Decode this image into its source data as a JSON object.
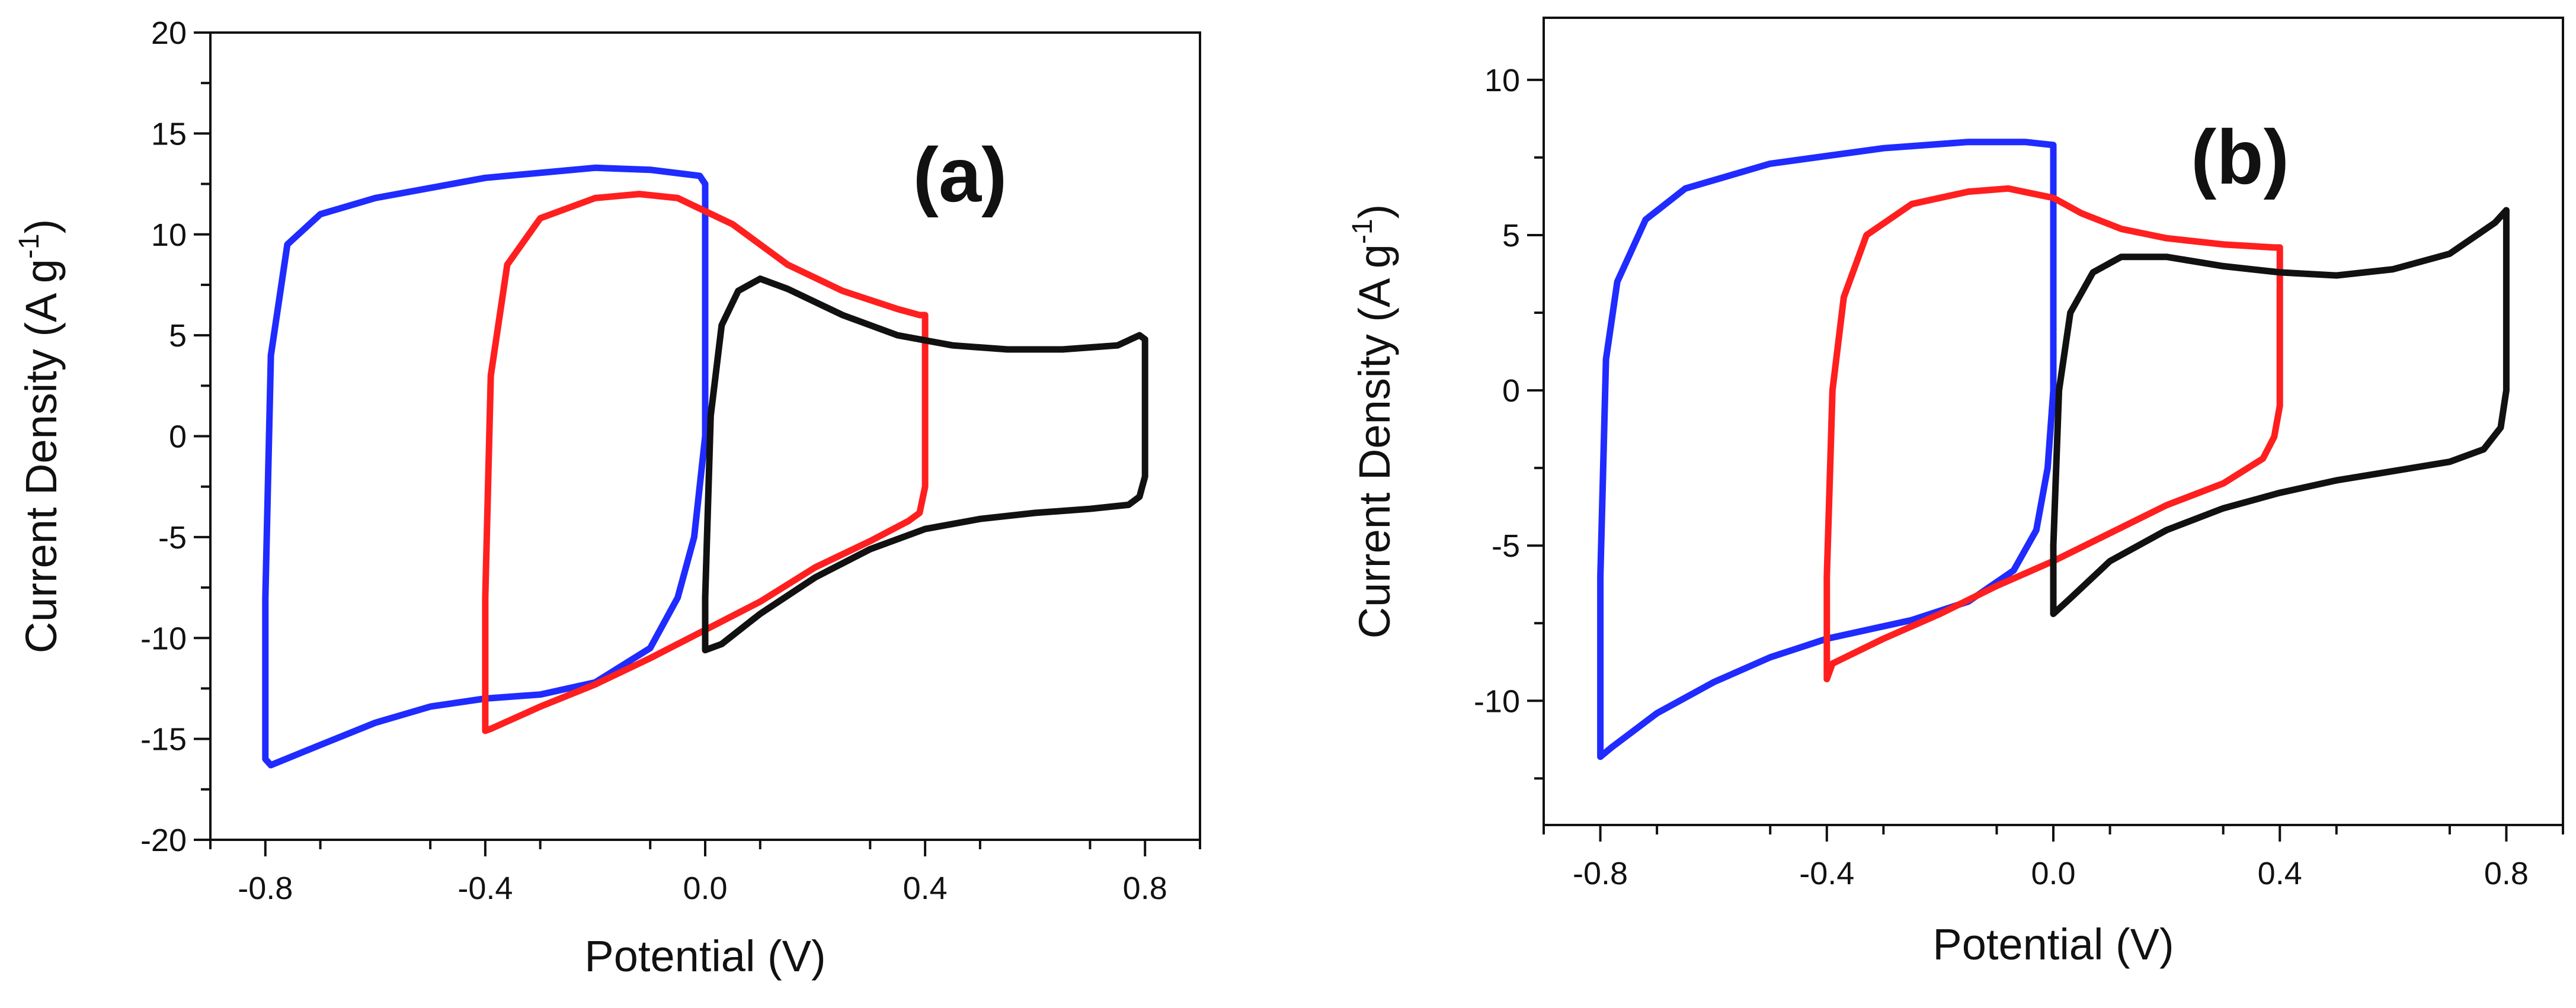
{
  "chart_data": [
    {
      "type": "line",
      "panel_label": "(a)",
      "xlabel": "Potential (V)",
      "ylabel": "Current Density (A g-1)",
      "ylabel_main": "Current Density (A g",
      "ylabel_sup": "-1",
      "ylabel_close": ")",
      "xlim": [
        -0.9,
        0.9
      ],
      "ylim": [
        -20,
        20
      ],
      "xticks": [
        -0.8,
        -0.4,
        0.0,
        0.4,
        0.8
      ],
      "xtick_labels": [
        "-0.8",
        "-0.4",
        "0.0",
        "0.4",
        "0.8"
      ],
      "yticks": [
        -20,
        -15,
        -10,
        -5,
        0,
        5,
        10,
        15,
        20
      ],
      "ytick_labels": [
        "-20",
        "-15",
        "-10",
        "-5",
        "0",
        "5",
        "10",
        "15",
        "20"
      ],
      "series": [
        {
          "name": "blue",
          "color": "#1f2bff",
          "x": [
            -0.8,
            -0.79,
            -0.76,
            -0.7,
            -0.6,
            -0.4,
            -0.2,
            -0.1,
            -0.01,
            0.0,
            0.0,
            -0.02,
            -0.05,
            -0.1,
            -0.2,
            -0.3,
            -0.4,
            -0.5,
            -0.6,
            -0.7,
            -0.79,
            -0.8,
            -0.8
          ],
          "y": [
            -8,
            4,
            9.5,
            11,
            11.8,
            12.8,
            13.3,
            13.2,
            12.9,
            12.5,
            0,
            -5,
            -8,
            -10.5,
            -12.2,
            -12.8,
            -13.0,
            -13.4,
            -14.2,
            -15.3,
            -16.3,
            -16.0,
            -8
          ]
        },
        {
          "name": "red",
          "color": "#ff1f1f",
          "x": [
            -0.4,
            -0.39,
            -0.36,
            -0.3,
            -0.2,
            -0.12,
            -0.05,
            0.05,
            0.15,
            0.25,
            0.35,
            0.39,
            0.4,
            0.4,
            0.39,
            0.37,
            0.3,
            0.2,
            0.1,
            0.0,
            -0.1,
            -0.2,
            -0.3,
            -0.39,
            -0.4,
            -0.4
          ],
          "y": [
            -8,
            3,
            8.5,
            10.8,
            11.8,
            12.0,
            11.8,
            10.5,
            8.5,
            7.2,
            6.3,
            6.0,
            6.0,
            -2.5,
            -3.8,
            -4.2,
            -5.2,
            -6.5,
            -8.2,
            -9.6,
            -11.0,
            -12.3,
            -13.4,
            -14.5,
            -14.6,
            -8
          ]
        },
        {
          "name": "black",
          "color": "#111111",
          "x": [
            0.0,
            0.01,
            0.03,
            0.06,
            0.1,
            0.15,
            0.25,
            0.35,
            0.45,
            0.55,
            0.65,
            0.75,
            0.79,
            0.8,
            0.8,
            0.79,
            0.77,
            0.7,
            0.6,
            0.5,
            0.4,
            0.3,
            0.2,
            0.1,
            0.03,
            0.0,
            0.0
          ],
          "y": [
            -8,
            1,
            5.5,
            7.2,
            7.8,
            7.3,
            6.0,
            5.0,
            4.5,
            4.3,
            4.3,
            4.5,
            5.0,
            4.8,
            -2.0,
            -3.0,
            -3.4,
            -3.6,
            -3.8,
            -4.1,
            -4.6,
            -5.6,
            -7.0,
            -8.8,
            -10.3,
            -10.6,
            -8
          ]
        }
      ]
    },
    {
      "type": "line",
      "panel_label": "(b)",
      "xlabel": "Potential (V)",
      "ylabel": "Current Density (A g-1)",
      "ylabel_main": "Current Density (A g",
      "ylabel_sup": "-1",
      "ylabel_close": ")",
      "xlim": [
        -0.9,
        0.9
      ],
      "ylim": [
        -14,
        12
      ],
      "xticks": [
        -0.8,
        -0.4,
        0.0,
        0.4,
        0.8
      ],
      "xtick_labels": [
        "-0.8",
        "-0.4",
        "0.0",
        "0.4",
        "0.8"
      ],
      "yticks": [
        -10,
        -5,
        0,
        5,
        10
      ],
      "ytick_labels": [
        "-10",
        "-5",
        "0",
        "5",
        "10"
      ],
      "series": [
        {
          "name": "blue",
          "color": "#1f2bff",
          "x": [
            -0.8,
            -0.79,
            -0.77,
            -0.72,
            -0.65,
            -0.5,
            -0.3,
            -0.15,
            -0.05,
            0.0,
            0.0,
            -0.01,
            -0.03,
            -0.07,
            -0.15,
            -0.25,
            -0.4,
            -0.5,
            -0.6,
            -0.7,
            -0.78,
            -0.8,
            -0.8
          ],
          "y": [
            -6,
            1,
            3.5,
            5.5,
            6.5,
            7.3,
            7.8,
            8.0,
            8.0,
            7.9,
            0,
            -2.5,
            -4.5,
            -5.8,
            -6.8,
            -7.4,
            -8.0,
            -8.6,
            -9.4,
            -10.4,
            -11.5,
            -11.8,
            -6
          ]
        },
        {
          "name": "red",
          "color": "#ff1f1f",
          "x": [
            -0.4,
            -0.39,
            -0.37,
            -0.33,
            -0.25,
            -0.15,
            -0.08,
            0.0,
            0.05,
            0.12,
            0.2,
            0.3,
            0.39,
            0.4,
            0.4,
            0.39,
            0.37,
            0.3,
            0.2,
            0.1,
            0.0,
            -0.1,
            -0.2,
            -0.3,
            -0.39,
            -0.4,
            -0.4
          ],
          "y": [
            -6,
            0,
            3,
            5.0,
            6.0,
            6.4,
            6.5,
            6.2,
            5.7,
            5.2,
            4.9,
            4.7,
            4.6,
            4.6,
            -0.5,
            -1.5,
            -2.2,
            -3.0,
            -3.7,
            -4.6,
            -5.5,
            -6.3,
            -7.2,
            -8.0,
            -8.8,
            -9.3,
            -6
          ]
        },
        {
          "name": "black",
          "color": "#111111",
          "x": [
            0.0,
            0.01,
            0.03,
            0.07,
            0.12,
            0.2,
            0.3,
            0.4,
            0.5,
            0.6,
            0.7,
            0.78,
            0.8,
            0.8,
            0.79,
            0.76,
            0.7,
            0.6,
            0.5,
            0.4,
            0.3,
            0.2,
            0.1,
            0.03,
            0.0,
            0.0
          ],
          "y": [
            -5,
            0,
            2.5,
            3.8,
            4.3,
            4.3,
            4.0,
            3.8,
            3.7,
            3.9,
            4.4,
            5.4,
            5.8,
            0,
            -1.2,
            -1.9,
            -2.3,
            -2.6,
            -2.9,
            -3.3,
            -3.8,
            -4.5,
            -5.5,
            -6.7,
            -7.2,
            -5
          ]
        }
      ]
    }
  ]
}
